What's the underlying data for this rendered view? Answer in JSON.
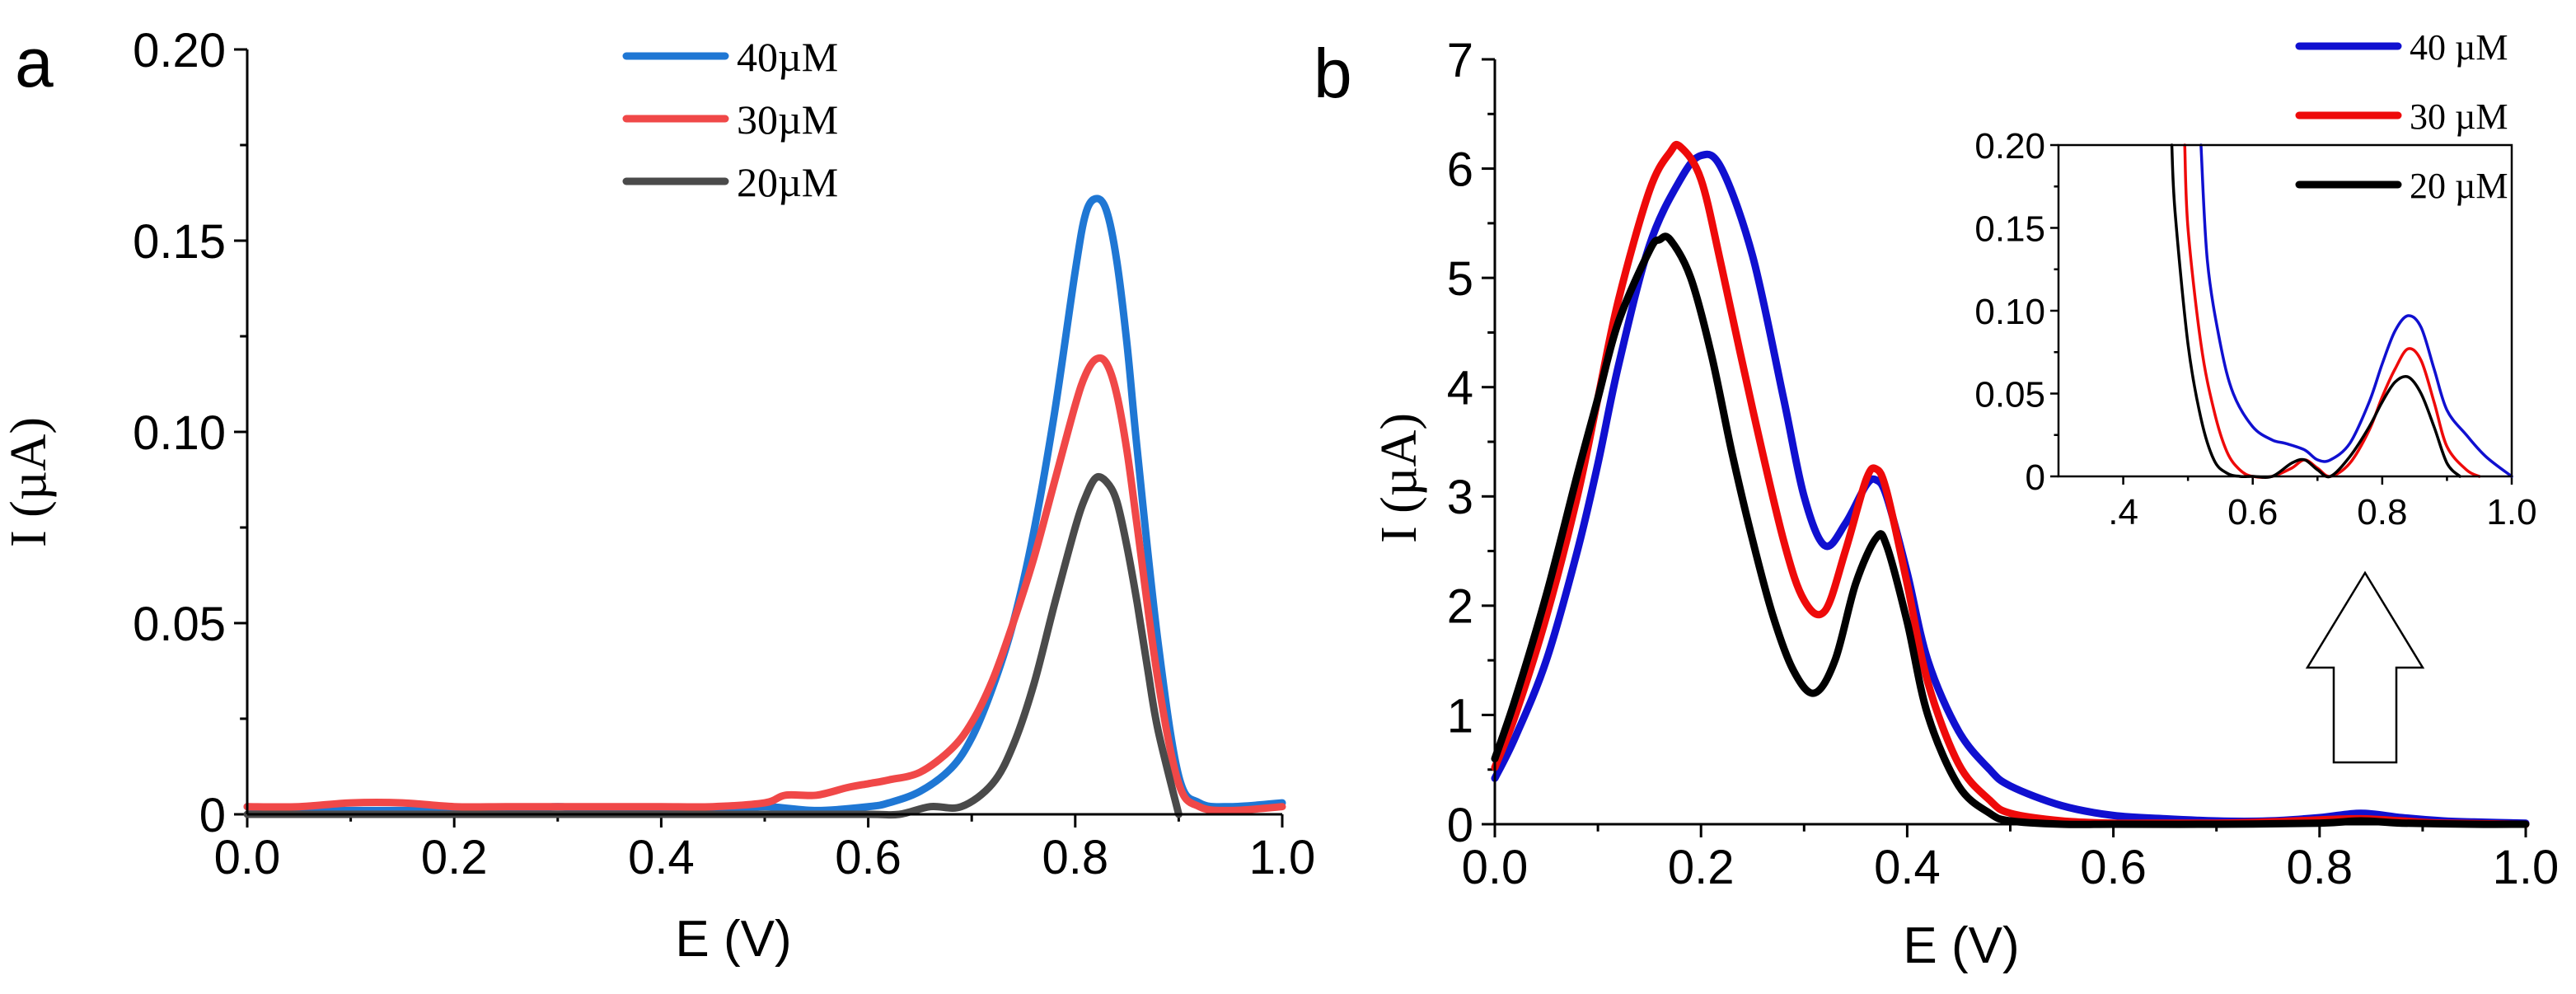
{
  "chart_data": [
    {
      "panel_label": "a",
      "type": "line",
      "xlabel": "E (V)",
      "ylabel": "I (µA)",
      "xlim": [
        0.0,
        1.0
      ],
      "ylim": [
        0.0,
        0.2
      ],
      "x_ticks": [
        0.0,
        0.2,
        0.4,
        0.6,
        0.8,
        1.0
      ],
      "x_tick_labels": [
        "0.0",
        "0.2",
        "0.4",
        "0.6",
        "0.8",
        "1.0"
      ],
      "y_ticks": [
        0.0,
        0.05,
        0.1,
        0.15,
        0.2
      ],
      "y_tick_labels": [
        "0",
        "0.05",
        "0.10",
        "0.15",
        "0.20"
      ],
      "legend_position": "top-center",
      "series": [
        {
          "name": "40µM",
          "color": "#1f77d4",
          "x": [
            0.0,
            0.05,
            0.1,
            0.15,
            0.2,
            0.25,
            0.3,
            0.35,
            0.4,
            0.45,
            0.5,
            0.55,
            0.6,
            0.62,
            0.65,
            0.68,
            0.7,
            0.72,
            0.74,
            0.76,
            0.78,
            0.8,
            0.81,
            0.82,
            0.83,
            0.84,
            0.85,
            0.86,
            0.88,
            0.9,
            0.92,
            0.95,
            1.0
          ],
          "y": [
            0.002,
            0.001,
            0.001,
            0.001,
            0.001,
            0.001,
            0.002,
            0.001,
            0.001,
            0.001,
            0.002,
            0.001,
            0.002,
            0.003,
            0.006,
            0.012,
            0.02,
            0.033,
            0.05,
            0.074,
            0.105,
            0.142,
            0.157,
            0.161,
            0.158,
            0.145,
            0.123,
            0.095,
            0.045,
            0.01,
            0.003,
            0.002,
            0.003
          ]
        },
        {
          "name": "30µM",
          "color": "#f04848",
          "x": [
            0.0,
            0.05,
            0.1,
            0.15,
            0.2,
            0.25,
            0.3,
            0.35,
            0.4,
            0.45,
            0.5,
            0.52,
            0.55,
            0.58,
            0.6,
            0.62,
            0.65,
            0.68,
            0.7,
            0.72,
            0.74,
            0.76,
            0.78,
            0.8,
            0.81,
            0.82,
            0.83,
            0.84,
            0.85,
            0.86,
            0.88,
            0.9,
            0.92,
            0.95,
            1.0
          ],
          "y": [
            0.002,
            0.002,
            0.003,
            0.003,
            0.002,
            0.002,
            0.002,
            0.002,
            0.002,
            0.002,
            0.003,
            0.005,
            0.005,
            0.007,
            0.008,
            0.009,
            0.011,
            0.017,
            0.024,
            0.035,
            0.05,
            0.067,
            0.087,
            0.107,
            0.115,
            0.119,
            0.118,
            0.11,
            0.095,
            0.075,
            0.035,
            0.008,
            0.002,
            0.001,
            0.002
          ]
        },
        {
          "name": "20µM",
          "color": "#4a4a4a",
          "x": [
            0.0,
            0.1,
            0.2,
            0.3,
            0.4,
            0.5,
            0.6,
            0.63,
            0.66,
            0.69,
            0.72,
            0.74,
            0.76,
            0.78,
            0.8,
            0.81,
            0.82,
            0.83,
            0.84,
            0.85,
            0.86,
            0.87,
            0.88,
            0.9
          ],
          "y": [
            0.0,
            0.0,
            0.0,
            0.0,
            0.0,
            0.0,
            0.0,
            0.0,
            0.002,
            0.002,
            0.008,
            0.018,
            0.034,
            0.055,
            0.075,
            0.083,
            0.088,
            0.087,
            0.082,
            0.07,
            0.055,
            0.038,
            0.022,
            0.0
          ]
        }
      ]
    },
    {
      "panel_label": "b",
      "type": "line",
      "xlabel": "E (V)",
      "ylabel": "I (µA)",
      "xlim": [
        0.0,
        1.0
      ],
      "ylim": [
        0.0,
        7.0
      ],
      "x_ticks": [
        0.0,
        0.2,
        0.4,
        0.6,
        0.8,
        1.0
      ],
      "x_tick_labels": [
        "0.0",
        "0.2",
        "0.4",
        "0.6",
        "0.8",
        "1.0"
      ],
      "y_ticks": [
        0,
        1,
        2,
        3,
        4,
        5,
        6,
        7
      ],
      "y_tick_labels": [
        "0",
        "1",
        "2",
        "3",
        "4",
        "5",
        "6",
        "7"
      ],
      "legend_position": "top-right",
      "series": [
        {
          "name": "40 µM",
          "color": "#1010d0",
          "x": [
            0.0,
            0.02,
            0.05,
            0.08,
            0.1,
            0.12,
            0.15,
            0.18,
            0.2,
            0.22,
            0.25,
            0.28,
            0.3,
            0.32,
            0.34,
            0.36,
            0.37,
            0.38,
            0.4,
            0.42,
            0.45,
            0.48,
            0.5,
            0.55,
            0.6,
            0.65,
            0.7,
            0.75,
            0.8,
            0.84,
            0.88,
            0.92,
            0.95,
            1.0
          ],
          "y": [
            0.42,
            0.8,
            1.5,
            2.5,
            3.3,
            4.2,
            5.3,
            5.9,
            6.12,
            6.0,
            5.2,
            3.9,
            3.0,
            2.55,
            2.75,
            3.1,
            3.15,
            3.0,
            2.3,
            1.5,
            0.85,
            0.5,
            0.35,
            0.17,
            0.08,
            0.05,
            0.03,
            0.03,
            0.06,
            0.1,
            0.06,
            0.03,
            0.02,
            0.01
          ]
        },
        {
          "name": "30 µM",
          "color": "#ee0a0a",
          "x": [
            0.0,
            0.02,
            0.05,
            0.08,
            0.1,
            0.12,
            0.15,
            0.17,
            0.18,
            0.2,
            0.22,
            0.25,
            0.28,
            0.3,
            0.32,
            0.34,
            0.36,
            0.37,
            0.38,
            0.4,
            0.42,
            0.45,
            0.48,
            0.5,
            0.55,
            0.6,
            0.65,
            0.7,
            0.75,
            0.8,
            0.84,
            0.88,
            0.92,
            1.0
          ],
          "y": [
            0.52,
            1.0,
            1.9,
            3.0,
            3.9,
            4.8,
            5.8,
            6.15,
            6.2,
            5.9,
            5.1,
            3.8,
            2.6,
            2.05,
            1.95,
            2.5,
            3.15,
            3.25,
            3.05,
            2.2,
            1.3,
            0.55,
            0.22,
            0.1,
            0.03,
            0.01,
            0.01,
            0.01,
            0.02,
            0.04,
            0.05,
            0.03,
            0.01,
            0.0
          ]
        },
        {
          "name": "20 µM",
          "color": "#000000",
          "x": [
            0.0,
            0.02,
            0.05,
            0.08,
            0.1,
            0.12,
            0.15,
            0.16,
            0.17,
            0.19,
            0.21,
            0.23,
            0.25,
            0.27,
            0.29,
            0.31,
            0.33,
            0.35,
            0.37,
            0.38,
            0.4,
            0.42,
            0.45,
            0.48,
            0.5,
            0.55,
            0.6,
            0.7,
            0.8,
            0.84,
            0.88,
            0.95,
            1.0
          ],
          "y": [
            0.6,
            1.15,
            2.1,
            3.2,
            3.9,
            4.6,
            5.25,
            5.35,
            5.35,
            5.0,
            4.3,
            3.4,
            2.6,
            1.9,
            1.4,
            1.2,
            1.5,
            2.2,
            2.62,
            2.55,
            1.85,
            1.0,
            0.35,
            0.1,
            0.03,
            0.0,
            0.0,
            0.0,
            0.01,
            0.03,
            0.01,
            0.0,
            0.0
          ]
        }
      ],
      "inset": {
        "xlim": [
          0.3,
          1.0
        ],
        "ylim": [
          0.0,
          0.2
        ],
        "x_ticks": [
          0.4,
          0.6,
          0.8,
          1.0
        ],
        "x_tick_labels": [
          ".4",
          "0.6",
          "0.8",
          "1.0"
        ],
        "y_ticks": [
          0,
          0.05,
          0.1,
          0.15,
          0.2
        ],
        "y_tick_labels": [
          "0",
          "0.05",
          "0.10",
          "0.15",
          "0.20"
        ],
        "series": [
          {
            "name": "40 µM",
            "color": "#1010d0",
            "x": [
              0.52,
              0.53,
              0.55,
              0.57,
              0.6,
              0.63,
              0.65,
              0.68,
              0.7,
              0.72,
              0.75,
              0.78,
              0.8,
              0.82,
              0.84,
              0.86,
              0.88,
              0.9,
              0.93,
              0.96,
              1.0
            ],
            "y": [
              0.2,
              0.13,
              0.08,
              0.05,
              0.03,
              0.022,
              0.02,
              0.016,
              0.01,
              0.01,
              0.02,
              0.045,
              0.068,
              0.088,
              0.097,
              0.09,
              0.065,
              0.04,
              0.025,
              0.012,
              0.0
            ]
          },
          {
            "name": "30 µM",
            "color": "#ee0a0a",
            "x": [
              0.495,
              0.5,
              0.52,
              0.54,
              0.56,
              0.58,
              0.6,
              0.63,
              0.66,
              0.68,
              0.7,
              0.72,
              0.75,
              0.78,
              0.8,
              0.82,
              0.84,
              0.86,
              0.88,
              0.9,
              0.93,
              0.95
            ],
            "y": [
              0.2,
              0.15,
              0.08,
              0.04,
              0.015,
              0.004,
              0.0,
              0.0,
              0.005,
              0.01,
              0.005,
              0.0,
              0.008,
              0.028,
              0.048,
              0.065,
              0.077,
              0.07,
              0.045,
              0.018,
              0.004,
              0.0
            ]
          },
          {
            "name": "20 µM",
            "color": "#000000",
            "x": [
              0.475,
              0.48,
              0.5,
              0.52,
              0.54,
              0.56,
              0.58,
              0.6,
              0.63,
              0.66,
              0.68,
              0.7,
              0.72,
              0.75,
              0.78,
              0.8,
              0.82,
              0.84,
              0.86,
              0.88,
              0.9,
              0.92
            ],
            "y": [
              0.2,
              0.16,
              0.08,
              0.035,
              0.01,
              0.002,
              0.0,
              0.0,
              0.0,
              0.008,
              0.01,
              0.004,
              0.0,
              0.012,
              0.03,
              0.045,
              0.057,
              0.06,
              0.05,
              0.03,
              0.008,
              0.0
            ]
          }
        ]
      }
    }
  ]
}
